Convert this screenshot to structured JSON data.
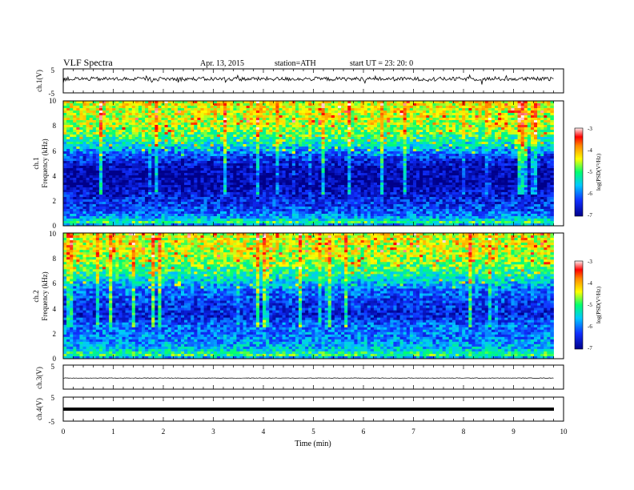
{
  "header": {
    "title": "VLF Spectra",
    "date": "Apr. 13, 2015",
    "station": "station=ATH",
    "start": "start UT =  23: 20: 0"
  },
  "chart_data": {
    "type": "heatmap",
    "xlabel": "Time (min)",
    "xlim": [
      0,
      10
    ],
    "x_ticks": [
      "0",
      "1",
      "2",
      "3",
      "4",
      "5",
      "6",
      "7",
      "8",
      "9",
      "10"
    ],
    "data_end_min": 9.8,
    "panels": [
      {
        "id": "ch1",
        "type": "line",
        "ylabel": "ch.1(V)",
        "ylim": [
          -5,
          5
        ],
        "y_ticks": [
          "5",
          "-5"
        ],
        "mean_value_v": 0.8
      },
      {
        "id": "spec1",
        "type": "heatmap",
        "ylabel_top": "ch.1",
        "ylabel": "Frequency (kHz)",
        "ylim": [
          0,
          10
        ],
        "y_ticks": [
          "0",
          "2",
          "4",
          "6",
          "8",
          "10"
        ],
        "colorbar_label": "log(PSD(V²/Hz)",
        "colorbar_ticks": [
          "-3",
          "-4",
          "-5",
          "-6",
          "-7"
        ],
        "colorbar_range": [
          -7,
          -3
        ],
        "frequency_profile": [
          {
            "f": 0.0,
            "v": -6.0
          },
          {
            "f": 0.3,
            "v": -5.0
          },
          {
            "f": 0.7,
            "v": -5.8
          },
          {
            "f": 1.2,
            "v": -6.2
          },
          {
            "f": 2.0,
            "v": -6.4
          },
          {
            "f": 2.8,
            "v": -6.7
          },
          {
            "f": 3.5,
            "v": -6.9
          },
          {
            "f": 4.5,
            "v": -6.8
          },
          {
            "f": 5.5,
            "v": -6.3
          },
          {
            "f": 6.5,
            "v": -5.4
          },
          {
            "f": 7.5,
            "v": -4.8
          },
          {
            "f": 8.5,
            "v": -4.5
          },
          {
            "f": 10.0,
            "v": -4.4
          }
        ]
      },
      {
        "id": "spec2",
        "type": "heatmap",
        "ylabel_top": "ch.2",
        "ylabel": "Frequency (kHz)",
        "ylim": [
          0,
          10
        ],
        "y_ticks": [
          "0",
          "2",
          "4",
          "6",
          "8",
          "10"
        ],
        "colorbar_label": "log(PSD(V²/Hz)",
        "colorbar_ticks": [
          "-3",
          "-4",
          "-5",
          "-6",
          "-7"
        ],
        "colorbar_range": [
          -7,
          -3
        ],
        "frequency_profile": [
          {
            "f": 0.0,
            "v": -6.0
          },
          {
            "f": 0.3,
            "v": -5.0
          },
          {
            "f": 0.8,
            "v": -5.6
          },
          {
            "f": 1.5,
            "v": -5.9
          },
          {
            "f": 2.5,
            "v": -6.0
          },
          {
            "f": 3.5,
            "v": -6.5
          },
          {
            "f": 4.5,
            "v": -6.3
          },
          {
            "f": 5.5,
            "v": -6.0
          },
          {
            "f": 6.5,
            "v": -5.3
          },
          {
            "f": 7.5,
            "v": -4.8
          },
          {
            "f": 8.5,
            "v": -4.5
          },
          {
            "f": 10.0,
            "v": -4.4
          }
        ]
      },
      {
        "id": "ch3",
        "type": "line",
        "ylabel": "ch.3(V)",
        "ylim": [
          -5,
          5
        ],
        "y_ticks": [
          "5"
        ],
        "mean_value_v": -0.4
      },
      {
        "id": "ch4",
        "type": "line",
        "ylabel": "ch.4(V)",
        "ylim": [
          -5,
          5
        ],
        "y_ticks": [
          "5",
          "-5"
        ],
        "mean_value_v": 0.1
      }
    ]
  }
}
